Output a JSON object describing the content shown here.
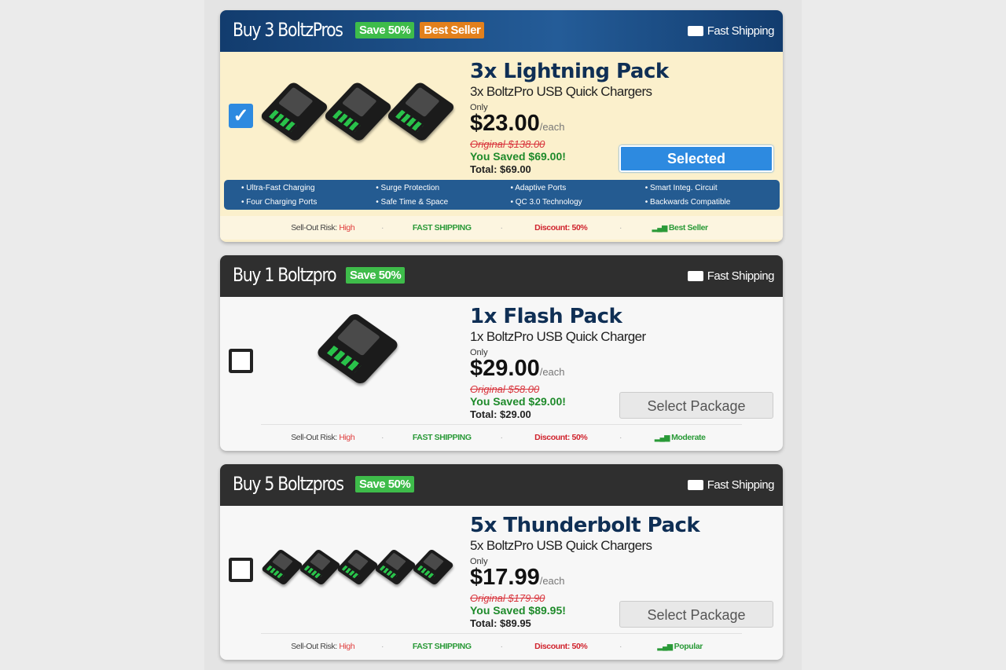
{
  "packages": [
    {
      "header": "Buy 3 BoltzPros",
      "save_badge": "Save 50%",
      "best_badge": "Best Seller",
      "shipping": "Fast Shipping",
      "selected": true,
      "checked": true,
      "qty": 3,
      "title": "3x Lightning Pack",
      "subtitle": "3x BoltzPro USB Quick Chargers",
      "only": "Only",
      "price": "$23.00",
      "each": "/each",
      "original": "Original $138.00",
      "saved": "You Saved $69.00!",
      "total": "Total: $69.00",
      "button": "Selected",
      "features": [
        "Ultra-Fast Charging",
        "Surge Protection",
        "Adaptive Ports",
        "Smart Integ. Circuit",
        "Four Charging Ports",
        "Safe Time & Space",
        "QC 3.0 Technology",
        "Backwards Compatible"
      ],
      "footer": {
        "risk_label": "Sell-Out Risk:",
        "risk_value": "High",
        "shipping": "FAST SHIPPING",
        "discount": "Discount: 50%",
        "popularity": "Best Seller"
      }
    },
    {
      "header": "Buy 1 Boltzpro",
      "save_badge": "Save 50%",
      "shipping": "Fast Shipping",
      "selected": false,
      "checked": false,
      "qty": 1,
      "title": "1x Flash Pack",
      "subtitle": "1x BoltzPro USB Quick Charger",
      "only": "Only",
      "price": "$29.00",
      "each": "/each",
      "original": "Original $58.00",
      "saved": "You Saved $29.00!",
      "total": "Total: $29.00",
      "button": "Select Package",
      "footer": {
        "risk_label": "Sell-Out Risk:",
        "risk_value": "High",
        "shipping": "FAST SHIPPING",
        "discount": "Discount: 50%",
        "popularity": "Moderate"
      }
    },
    {
      "header": "Buy 5 Boltzpros",
      "save_badge": "Save 50%",
      "shipping": "Fast Shipping",
      "selected": false,
      "checked": false,
      "qty": 5,
      "title": "5x Thunderbolt Pack",
      "subtitle": "5x BoltzPro USB Quick Chargers",
      "only": "Only",
      "price": "$17.99",
      "each": "/each",
      "original": "Original $179.90",
      "saved": "You Saved $89.95!",
      "total": "Total: $89.95",
      "button": "Select Package",
      "footer": {
        "risk_label": "Sell-Out Risk:",
        "risk_value": "High",
        "shipping": "FAST SHIPPING",
        "discount": "Discount: 50%",
        "popularity": "Popular"
      }
    }
  ],
  "colors": {
    "selected_header": "#1d4f86",
    "header": "#2f2f2f",
    "accent": "#2d8ae0",
    "save": "#3ebc4a",
    "best": "#e2801c",
    "selected_bg": "#fbf0cc"
  }
}
